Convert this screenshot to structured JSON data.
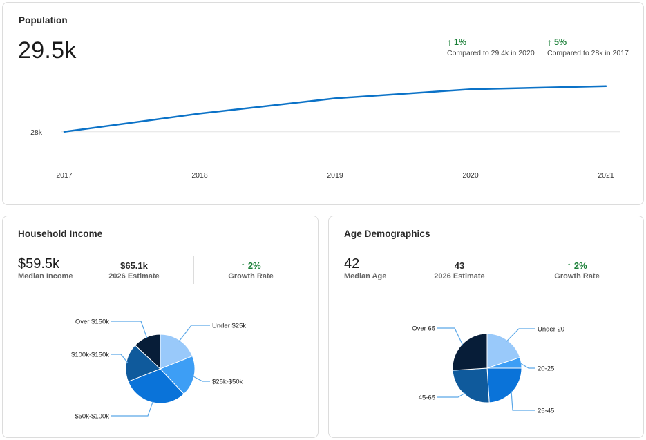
{
  "population": {
    "title": "Population",
    "value": "29.5k",
    "comparisons": [
      {
        "pct": "1%",
        "text": "Compared to 29.4k in 2020"
      },
      {
        "pct": "5%",
        "text": "Compared to 28k in 2017"
      }
    ]
  },
  "income": {
    "title": "Household Income",
    "median_value": "$59.5k",
    "median_label": "Median Income",
    "estimate_value": "$65.1k",
    "estimate_label": "2026 Estimate",
    "growth_value": "2%",
    "growth_label": "Growth Rate"
  },
  "age": {
    "title": "Age Demographics",
    "median_value": "42",
    "median_label": "Median Age",
    "estimate_value": "43",
    "estimate_label": "2026 Estimate",
    "growth_value": "2%",
    "growth_label": "Growth Rate"
  },
  "colors": {
    "line": "#0b72c7",
    "growth": "#1a7f37"
  },
  "chart_data": [
    {
      "type": "line",
      "title": "",
      "categories": [
        "2017",
        "2018",
        "2019",
        "2020",
        "2021"
      ],
      "series": [
        {
          "values": [
            28.0,
            28.6,
            29.1,
            29.4,
            29.5
          ]
        }
      ],
      "y_tick_labels": [
        "28k"
      ],
      "y_tick_values": [
        28.0
      ],
      "ylim": [
        27.2,
        30.2
      ],
      "grid": "single reference line at 28k"
    },
    {
      "type": "pie",
      "title": "",
      "categories": [
        "Under $25k",
        "$25k-$50k",
        "$50k-$100k",
        "$100k-$150k",
        "Over $150k"
      ],
      "values": [
        19,
        19,
        31,
        18,
        13
      ],
      "colors": [
        "#99c9fa",
        "#3d9ef5",
        "#0a73d9",
        "#0f5a9c",
        "#071d38"
      ]
    },
    {
      "type": "pie",
      "title": "",
      "categories": [
        "Under 20",
        "20-25",
        "25-45",
        "45-65",
        "Over 65"
      ],
      "values": [
        20,
        5,
        24,
        25,
        26
      ],
      "colors": [
        "#99c9fa",
        "#3d9ef5",
        "#0a73d9",
        "#0f5a9c",
        "#071d38"
      ]
    }
  ]
}
